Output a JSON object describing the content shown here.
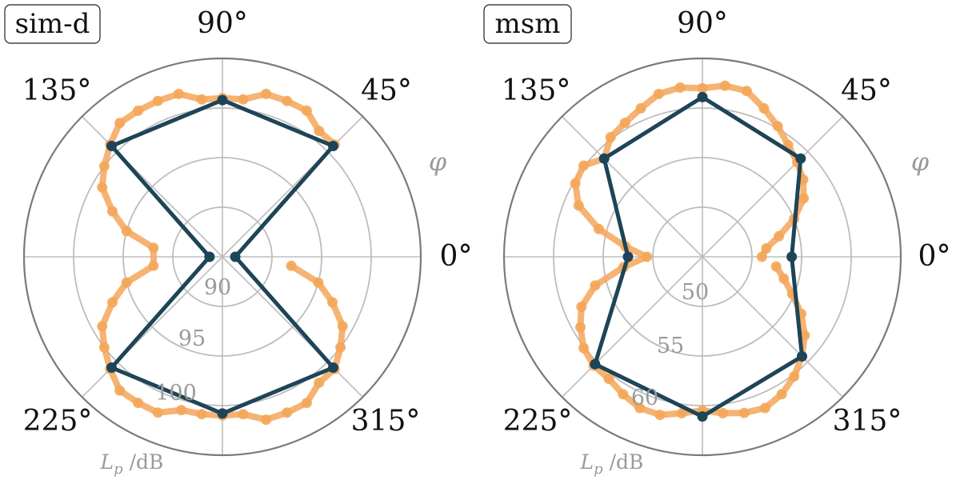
{
  "chart_data": [
    {
      "type": "polar-line",
      "title": "sim-d",
      "angle_label": "φ",
      "radial_label": "L_p / dB",
      "angle_ticks": [
        "0°",
        "45°",
        "90°",
        "135°",
        "225°",
        "315°"
      ],
      "radial_ticks": [
        90,
        95,
        100
      ],
      "rlim": [
        85,
        105
      ],
      "grid": true,
      "colors": {
        "series_dark": "#1e4458",
        "series_orange": "#f4a65a"
      },
      "series": [
        {
          "theta_deg": [
            0,
            45,
            90,
            135,
            180,
            225,
            270,
            315,
            360
          ],
          "r": [
            86.3,
            100.8,
            100.8,
            100.8,
            86.3,
            100.8,
            100.8,
            100.8,
            86.3
          ]
        },
        {
          "theta_deg": [
            45,
            52.5,
            60,
            67.5,
            75,
            82.5,
            90,
            97.5,
            105,
            112.5,
            120,
            127.5,
            135,
            142.5,
            150,
            157.5,
            165,
            172.5,
            187.5,
            195,
            202.5,
            210,
            217.5,
            225,
            232.5,
            240,
            247.5,
            255,
            262.5,
            270,
            277.5,
            285,
            292.5,
            300,
            307.5,
            315,
            322.5,
            330,
            337.5,
            345,
            352.5
          ],
          "r": [
            101,
            101,
            102,
            102,
            102,
            101,
            101,
            101,
            102,
            102,
            102,
            102,
            101,
            100,
            99,
            97,
            95,
            92,
            92,
            95,
            97,
            99,
            100,
            101,
            102,
            102,
            102,
            101,
            101,
            101,
            101,
            102,
            102,
            102,
            101,
            101,
            100,
            99,
            97,
            95,
            92
          ]
        }
      ]
    },
    {
      "type": "polar-line",
      "title": "msm",
      "angle_label": "φ",
      "radial_label": "L_p / dB",
      "angle_ticks": [
        "0°",
        "45°",
        "90°",
        "135°",
        "225°",
        "315°"
      ],
      "radial_ticks": [
        50,
        55,
        60
      ],
      "rlim": [
        45,
        65
      ],
      "grid": true,
      "colors": {
        "series_dark": "#1e4458",
        "series_orange": "#f4a65a"
      },
      "series": [
        {
          "theta_deg": [
            0,
            45,
            90,
            135,
            180,
            225,
            270,
            315,
            360
          ],
          "r": [
            54.0,
            59.0,
            61.1,
            59.0,
            52.5,
            60.3,
            61.1,
            59.2,
            54.0
          ]
        },
        {
          "theta_deg": [
            0,
            7.5,
            15,
            22.5,
            30,
            37.5,
            45,
            52.5,
            60,
            67.5,
            75,
            82.5,
            90,
            97.5,
            105,
            112.5,
            120,
            127.5,
            135,
            142.5,
            150,
            157.5,
            165,
            172.5,
            180,
            187.5,
            195,
            202.5,
            210,
            217.5,
            225,
            232.5,
            240,
            247.5,
            255,
            262.5,
            270,
            277.5,
            285,
            292.5,
            300,
            307.5,
            315,
            322.5,
            330,
            337.5,
            345,
            352.5
          ],
          "r": [
            51,
            51.5,
            53,
            55,
            56.8,
            57.8,
            58.5,
            59.2,
            60.2,
            61.2,
            62.3,
            62.4,
            62.0,
            62.2,
            62.0,
            61.2,
            60.6,
            60.2,
            59.0,
            60.1,
            59.8,
            58.5,
            55.8,
            52.8,
            50.6,
            53.0,
            56.2,
            58.2,
            59.2,
            60.1,
            60.5,
            60.5,
            61.0,
            61.5,
            61.5,
            60.9,
            60.5,
            60.9,
            61.3,
            61.5,
            61.0,
            60.2,
            59.2,
            58.0,
            56.5,
            54.8,
            53.5,
            52.5
          ]
        }
      ]
    }
  ]
}
